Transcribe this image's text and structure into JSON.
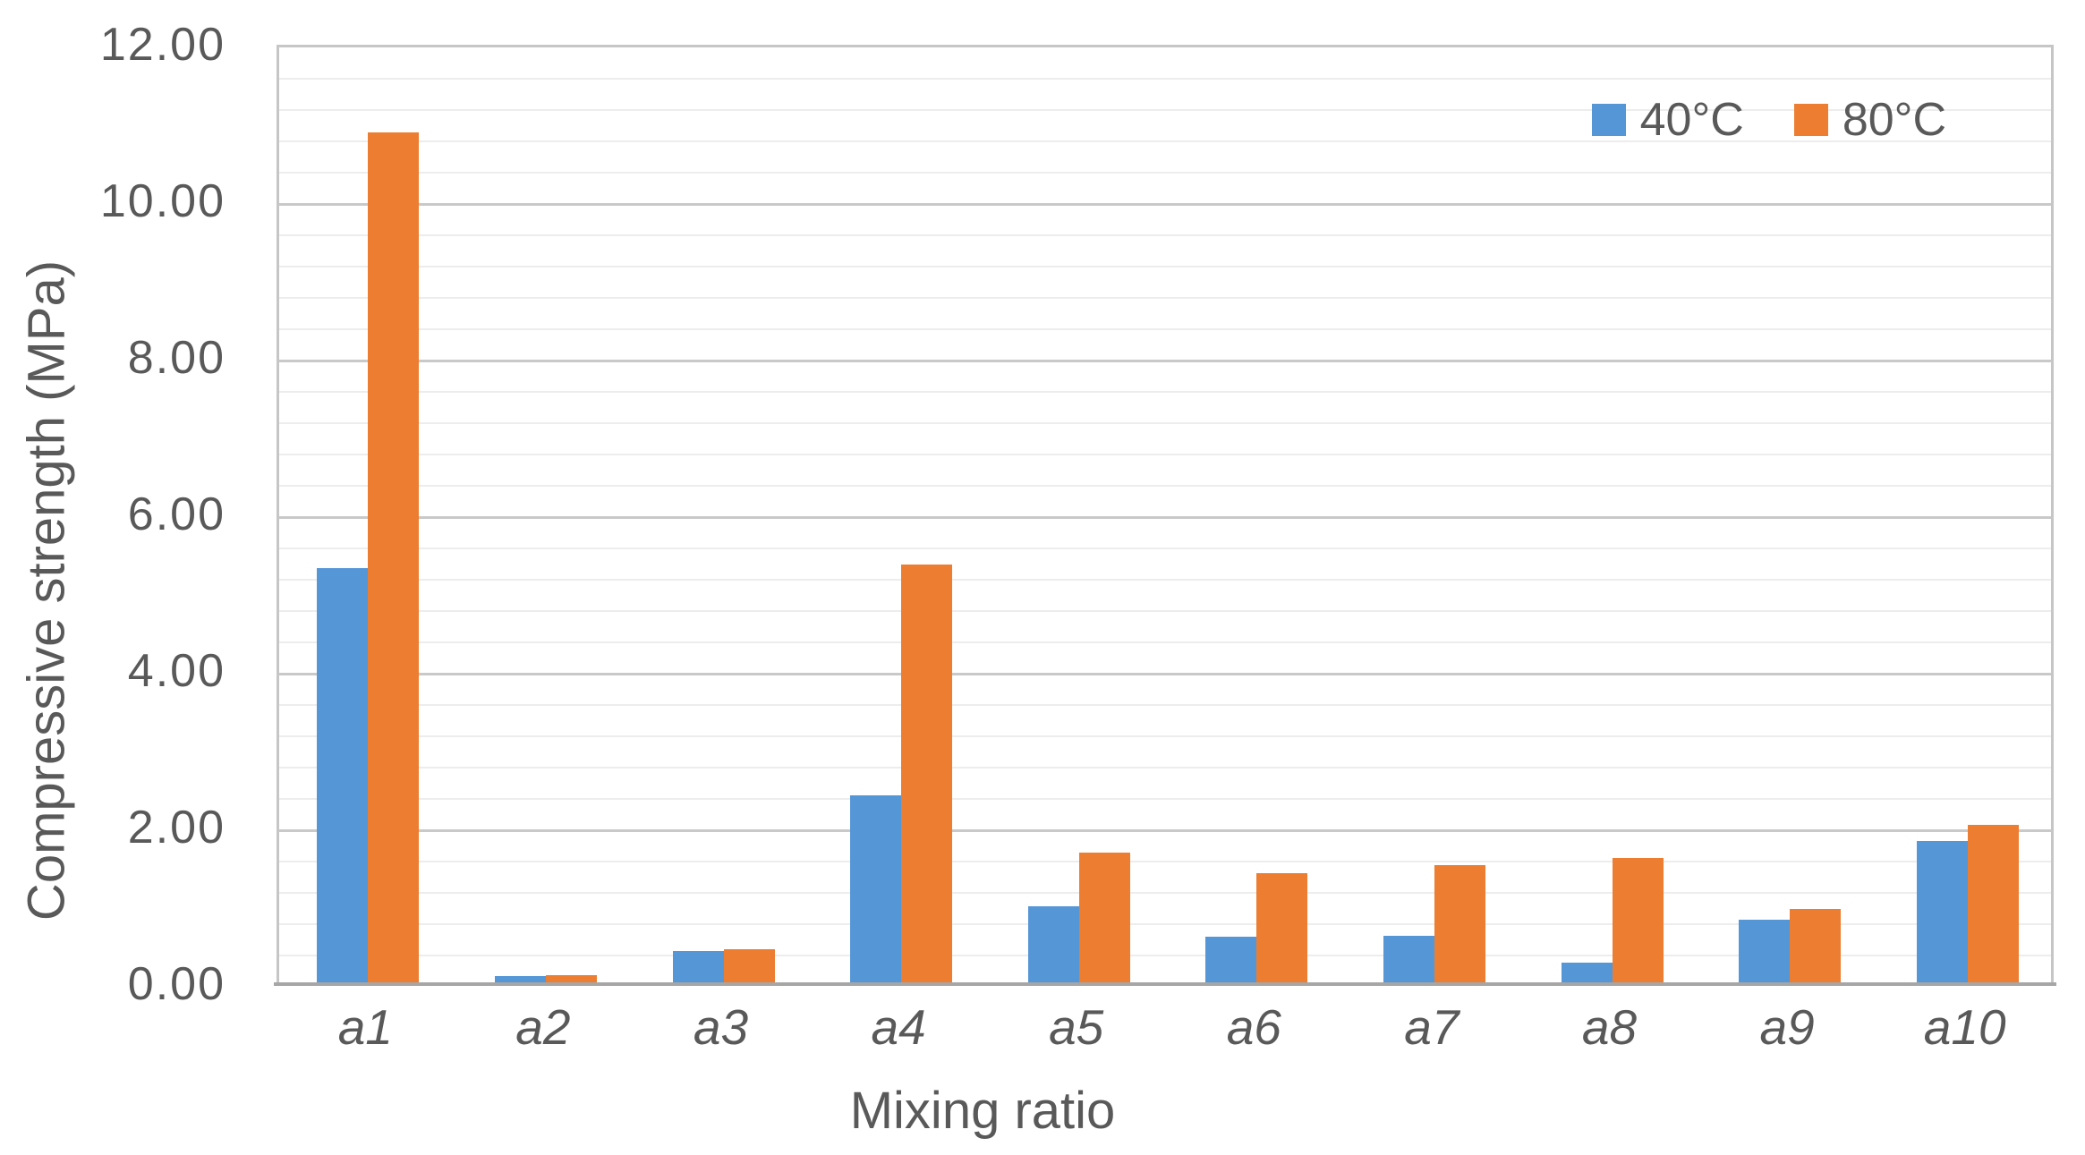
{
  "chart_data": {
    "type": "bar",
    "title": "",
    "categories": [
      "a1",
      "a2",
      "a3",
      "a4",
      "a5",
      "a6",
      "a7",
      "a8",
      "a9",
      "a10"
    ],
    "series": [
      {
        "name": "40°C",
        "color": "#5596D7",
        "values": [
          5.31,
          0.1,
          0.42,
          2.41,
          1.0,
          0.61,
          0.62,
          0.27,
          0.82,
          1.83
        ]
      },
      {
        "name": "80°C",
        "color": "#ED7D31",
        "values": [
          10.88,
          0.11,
          0.45,
          5.36,
          1.68,
          1.42,
          1.52,
          1.61,
          0.96,
          2.03
        ]
      }
    ],
    "xlabel": "Mixing ratio",
    "ylabel": "Compressive strength (MPa)",
    "ylim": [
      0,
      12
    ],
    "y_major_step": 2,
    "y_minor_step": 0.4,
    "y_tick_labels": [
      "0.00",
      "2.00",
      "4.00",
      "6.00",
      "8.00",
      "10.00",
      "12.00"
    ],
    "grid": "major and minor horizontal gridlines on",
    "legend_position": "top-right inside plot"
  },
  "legend": {
    "items": [
      {
        "label": "40°C",
        "color": "#5596D7"
      },
      {
        "label": "80°C",
        "color": "#ED7D31"
      }
    ]
  },
  "axes": {
    "x_title": "Mixing ratio",
    "y_title": "Compressive strength (MPa)"
  },
  "colors": {
    "text": "#595959",
    "major_grid": "#C9C9C9",
    "minor_grid": "#EDEDED",
    "plot_border": "#C6C6C6",
    "x_axis_line": "#A6A6A6",
    "background": "#FFFFFF"
  }
}
